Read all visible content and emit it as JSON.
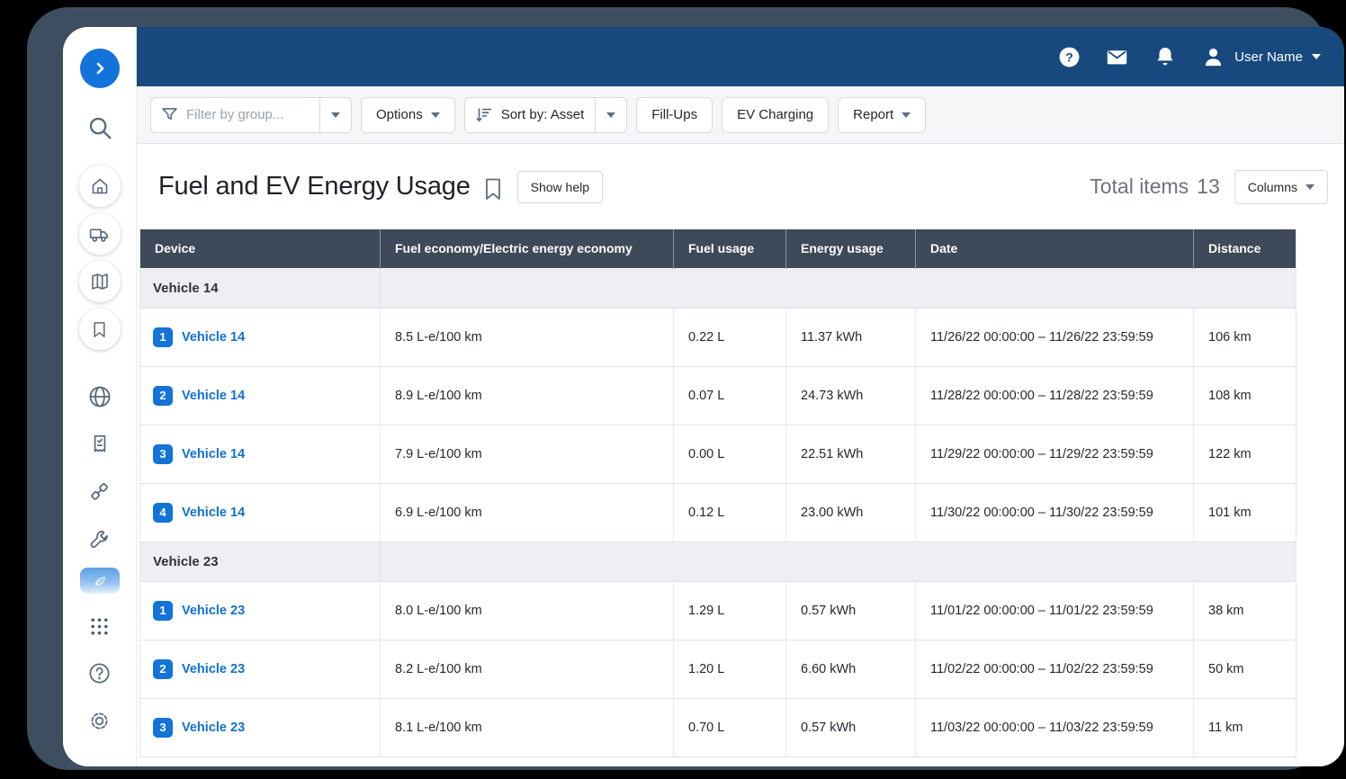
{
  "colors": {
    "accent_blue": "#1273d8",
    "navbar_blue": "#17497e",
    "frame_slate": "#3e4e61",
    "table_header_slate": "#3e4a59",
    "link_blue": "#1170d2",
    "group_row_bg": "#edeff3"
  },
  "sidebar": {
    "icons": [
      "chevron-right",
      "search",
      "home",
      "vehicle",
      "map",
      "bookmark",
      "globe",
      "receipt",
      "fuel-hose",
      "wrench",
      "leaf-active",
      "apps-grid",
      "help",
      "settings"
    ],
    "active_item": "leaf-active"
  },
  "navbar": {
    "user_name": "User Name",
    "icons": [
      "help-circle",
      "envelope",
      "bell",
      "person",
      "caret-down"
    ]
  },
  "toolbar": {
    "filter_placeholder": "Filter by group...",
    "options_label": "Options",
    "sort_label": "Sort by: Asset",
    "fill_ups_label": "Fill-Ups",
    "ev_charging_label": "EV Charging",
    "report_label": "Report"
  },
  "page": {
    "title": "Fuel and EV Energy Usage",
    "show_help_label": "Show help",
    "total_items_label": "Total items",
    "total_items_count": "13",
    "columns_label": "Columns"
  },
  "table": {
    "columns": [
      "Device",
      "Fuel economy/Electric energy economy",
      "Fuel usage",
      "Energy usage",
      "Date",
      "Distance"
    ],
    "groups": [
      {
        "label": "Vehicle 14",
        "rows": [
          {
            "num": "1",
            "device": "Vehicle 14",
            "economy": "8.5 L-e/100 km",
            "fuel": "0.22 L",
            "energy": "11.37 kWh",
            "date": "11/26/22 00:00:00 – 11/26/22 23:59:59",
            "distance": "106 km"
          },
          {
            "num": "2",
            "device": "Vehicle 14",
            "economy": "8.9 L-e/100 km",
            "fuel": "0.07 L",
            "energy": "24.73 kWh",
            "date": "11/28/22 00:00:00 – 11/28/22 23:59:59",
            "distance": "108 km"
          },
          {
            "num": "3",
            "device": "Vehicle 14",
            "economy": "7.9 L-e/100 km",
            "fuel": "0.00 L",
            "energy": "22.51 kWh",
            "date": "11/29/22 00:00:00 – 11/29/22 23:59:59",
            "distance": "122 km"
          },
          {
            "num": "4",
            "device": "Vehicle 14",
            "economy": "6.9 L-e/100 km",
            "fuel": "0.12 L",
            "energy": "23.00 kWh",
            "date": "11/30/22 00:00:00 – 11/30/22 23:59:59",
            "distance": "101 km"
          }
        ]
      },
      {
        "label": "Vehicle 23",
        "rows": [
          {
            "num": "1",
            "device": "Vehicle 23",
            "economy": "8.0 L-e/100 km",
            "fuel": "1.29 L",
            "energy": "0.57 kWh",
            "date": "11/01/22 00:00:00 – 11/01/22 23:59:59",
            "distance": "38 km"
          },
          {
            "num": "2",
            "device": "Vehicle 23",
            "economy": "8.2 L-e/100 km",
            "fuel": "1.20 L",
            "energy": "6.60 kWh",
            "date": "11/02/22 00:00:00 – 11/02/22 23:59:59",
            "distance": "50 km"
          },
          {
            "num": "3",
            "device": "Vehicle 23",
            "economy": "8.1 L-e/100 km",
            "fuel": "0.70 L",
            "energy": "0.57 kWh",
            "date": "11/03/22 00:00:00 – 11/03/22 23:59:59",
            "distance": "11 km"
          }
        ]
      }
    ]
  }
}
